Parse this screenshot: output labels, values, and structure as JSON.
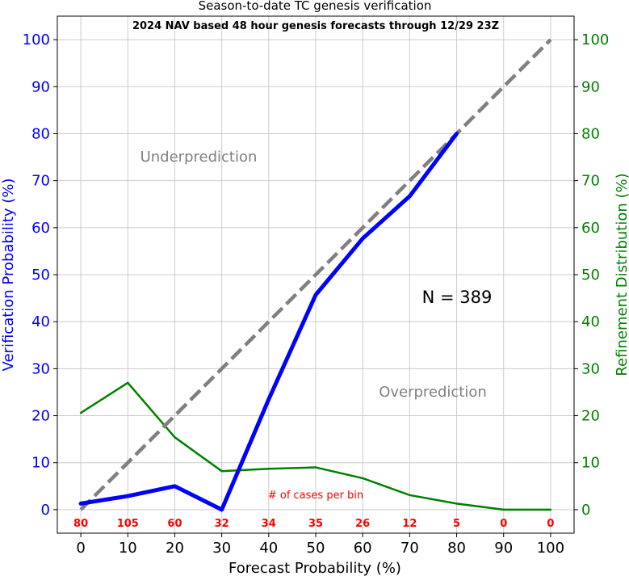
{
  "chart_data": {
    "type": "line",
    "title": "Season-to-date TC genesis verification",
    "subtitle": "2024 NAV based 48 hour genesis forecasts through 12/29 23Z",
    "xlabel": "Forecast Probability (%)",
    "ylabel_left": "Verification Probability (%)",
    "ylabel_right": "Refinement Distribution (%)",
    "xlim": [
      -5,
      105
    ],
    "ylim": [
      -5,
      105
    ],
    "x_ticks": [
      0,
      10,
      20,
      30,
      40,
      50,
      60,
      70,
      80,
      90,
      100
    ],
    "y_ticks": [
      0,
      10,
      20,
      30,
      40,
      50,
      60,
      70,
      80,
      90,
      100
    ],
    "grid": true,
    "series": [
      {
        "role": "verification",
        "color": "#0000ff",
        "axis": "left",
        "x": [
          0,
          10,
          20,
          30,
          40,
          50,
          60,
          70,
          80
        ],
        "y": [
          1.3,
          2.9,
          5.0,
          0.0,
          23.5,
          45.7,
          57.7,
          66.7,
          80.0
        ]
      },
      {
        "role": "refinement",
        "color": "#008000",
        "axis": "right",
        "x": [
          0,
          10,
          20,
          30,
          40,
          50,
          60,
          70,
          80,
          90,
          100
        ],
        "y": [
          20.6,
          27.0,
          15.4,
          8.2,
          8.7,
          9.0,
          6.7,
          3.1,
          1.3,
          0.0,
          0.0
        ]
      },
      {
        "role": "perfect-reliability",
        "color": "#808080",
        "dashed": true,
        "x": [
          0,
          100
        ],
        "y": [
          0,
          100
        ]
      }
    ],
    "annotations": {
      "underprediction": "Underprediction",
      "overprediction": "Overprediction",
      "n_label": "N = 389",
      "cases_label": "# of cases per bin"
    },
    "case_counts": {
      "x": [
        0,
        10,
        20,
        30,
        40,
        50,
        60,
        70,
        80,
        90,
        100
      ],
      "labels": [
        "80",
        "105",
        "60",
        "32",
        "34",
        "35",
        "26",
        "12",
        "5",
        "0",
        "0"
      ]
    },
    "colors": {
      "left_axis": "#0000ff",
      "right_axis": "#008000",
      "counts": "#ff0000",
      "annotation": "#808080",
      "grid": "#cccccc"
    }
  }
}
